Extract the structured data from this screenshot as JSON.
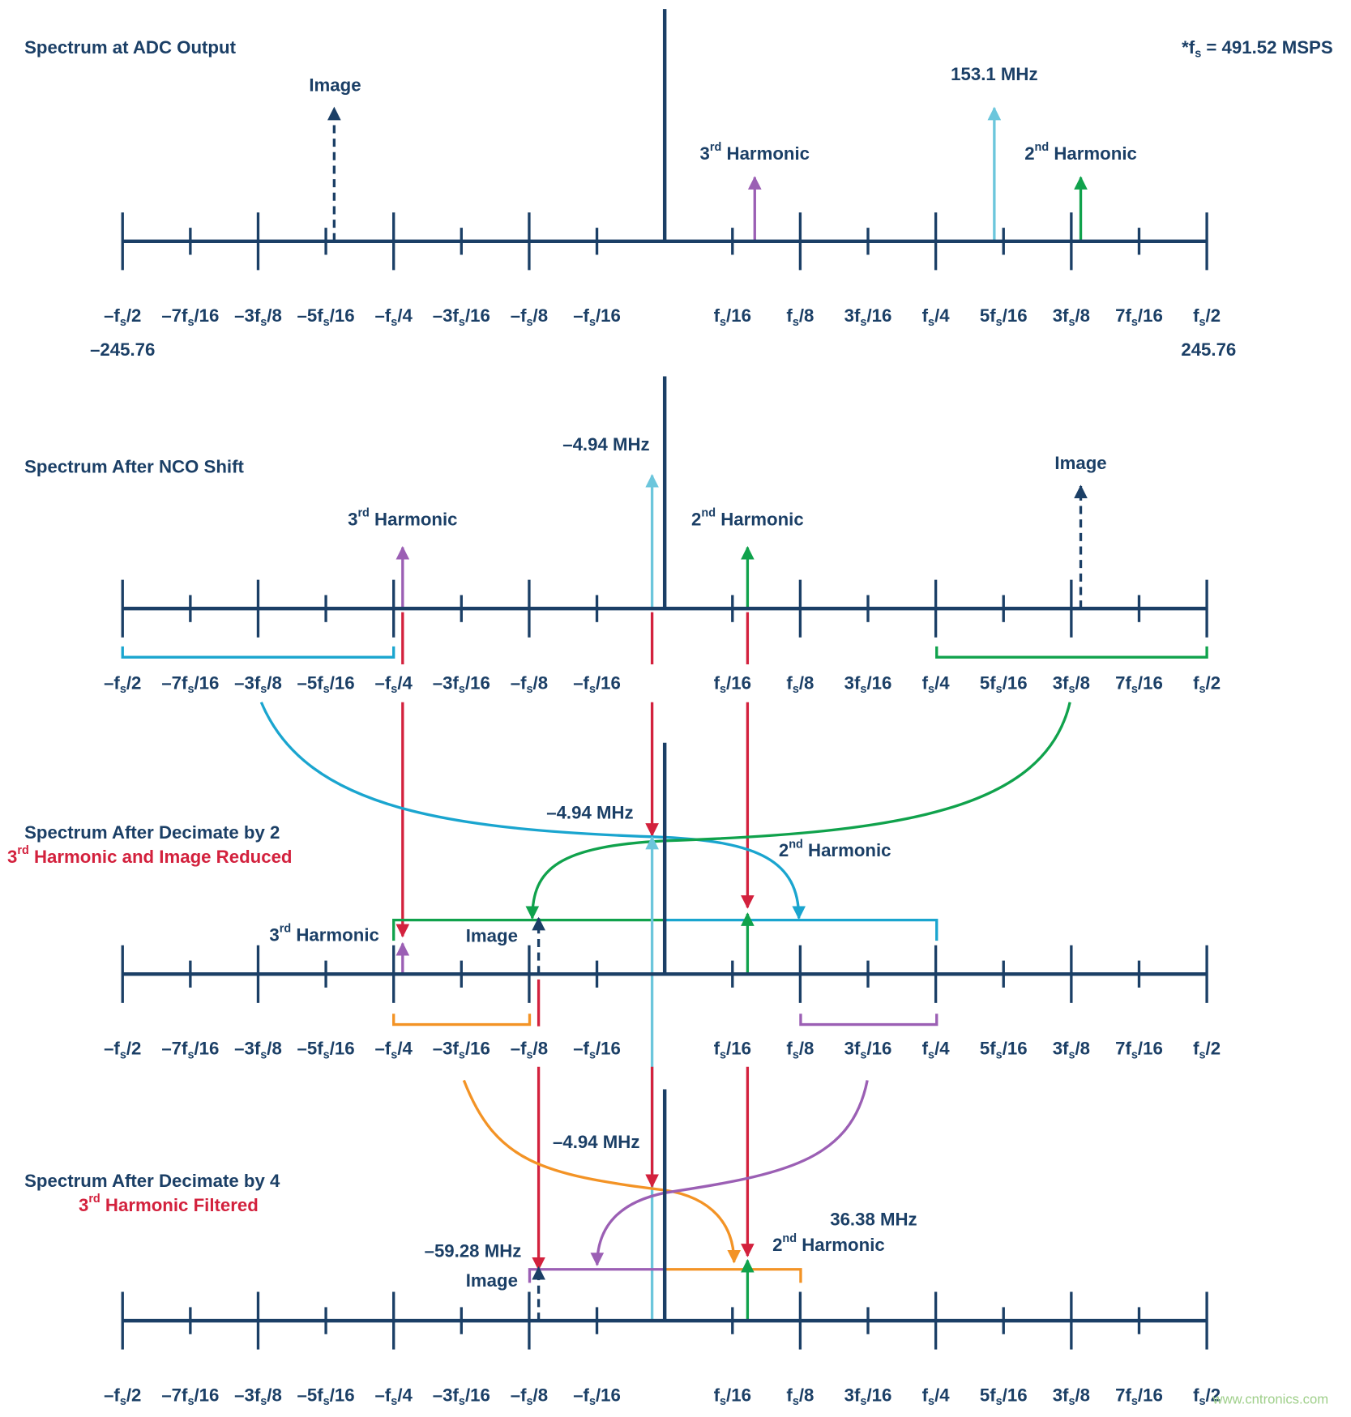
{
  "note": [
    "*f",
    "s",
    " = 491.52 MSPS"
  ],
  "tick_labels": [
    [
      "–f",
      "s",
      "/2"
    ],
    [
      "–7f",
      "s",
      "/16"
    ],
    [
      "–3f",
      "s",
      "/8"
    ],
    [
      "–5f",
      "s",
      "/16"
    ],
    [
      "–f",
      "s",
      "/4"
    ],
    [
      "–3f",
      "s",
      "/16"
    ],
    [
      "–f",
      "s",
      "/8"
    ],
    [
      "–f",
      "s",
      "/16"
    ],
    [
      "f",
      "s",
      "/16"
    ],
    [
      "f",
      "s",
      "/8"
    ],
    [
      "3f",
      "s",
      "/16"
    ],
    [
      "f",
      "s",
      "/4"
    ],
    [
      "5f",
      "s",
      "/16"
    ],
    [
      "3f",
      "s",
      "/8"
    ],
    [
      "7f",
      "s",
      "/16"
    ],
    [
      "f",
      "s",
      "/2"
    ]
  ],
  "panels": [
    {
      "title": "Spectrum at ADC Output",
      "labels": [
        "Image",
        "153.1 MHz",
        [
          "3",
          "rd",
          " Harmonic"
        ],
        [
          "2",
          "nd",
          " Harmonic"
        ]
      ],
      "range": [
        "–245.76",
        "245.76"
      ]
    },
    {
      "title": "Spectrum After NCO Shift",
      "labels": [
        "–4.94 MHz",
        "Image",
        [
          "3",
          "rd",
          " Harmonic"
        ],
        [
          "2",
          "nd",
          " Harmonic"
        ]
      ]
    },
    {
      "title": "Spectrum After Decimate by 2",
      "subtitle": [
        "3",
        "rd",
        " Harmonic and Image Reduced"
      ],
      "labels": [
        "–4.94 MHz",
        [
          "2",
          "nd",
          " Harmonic"
        ],
        [
          "3",
          "rd",
          " Harmonic"
        ],
        "Image"
      ]
    },
    {
      "title": "Spectrum After Decimate by 4",
      "subtitle": [
        "3",
        "rd",
        " Harmonic Filtered"
      ],
      "labels": [
        "–4.94 MHz",
        "36.38 MHz",
        [
          "2",
          "nd",
          " Harmonic"
        ],
        "–59.28 MHz",
        "Image"
      ]
    }
  ],
  "watermark": "www.cntronics.com"
}
